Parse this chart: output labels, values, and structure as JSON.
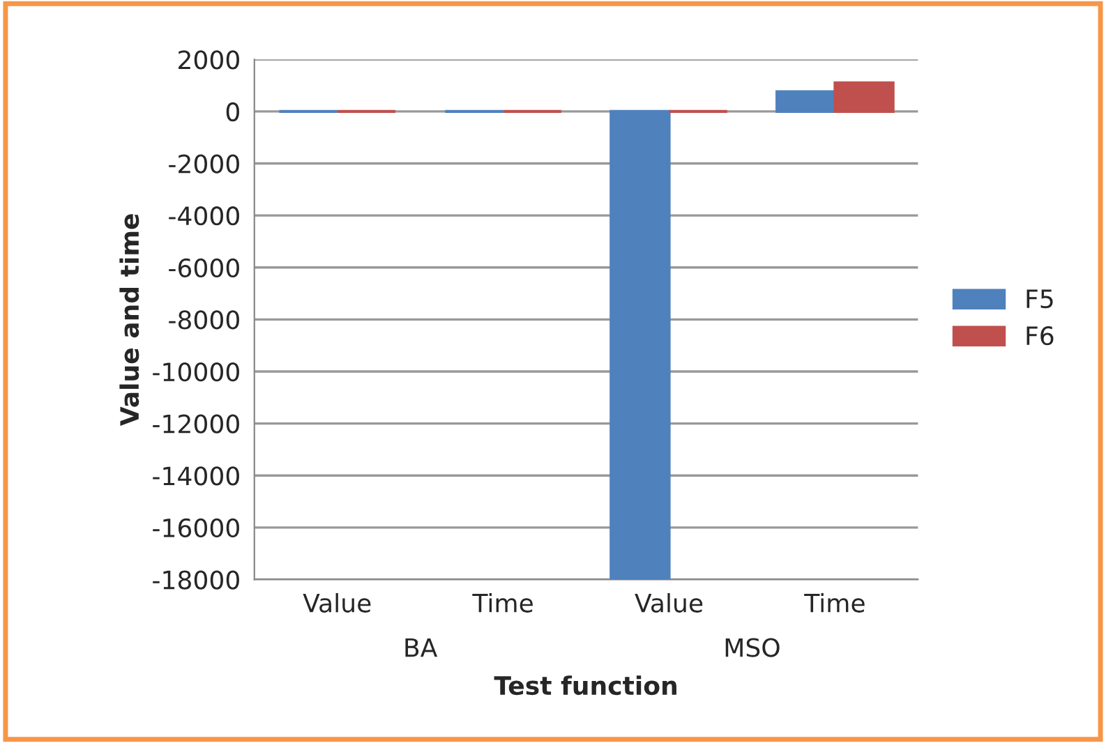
{
  "chart_data": {
    "type": "bar",
    "xlabel": "Test function",
    "ylabel": "Value and time",
    "categories": [
      "Value",
      "Time",
      "Value",
      "Time"
    ],
    "series": [
      {
        "name": "F5",
        "color": "#4f81bd",
        "values": [
          0,
          0,
          -18000,
          760
        ]
      },
      {
        "name": "F6",
        "color": "#c0504d",
        "values": [
          0,
          0,
          0,
          1100
        ]
      }
    ],
    "annotations": [
      "BA",
      "MSO"
    ],
    "ylim": [
      -18000,
      2000
    ],
    "yticks": [
      -18000,
      -16000,
      -14000,
      -12000,
      -10000,
      -8000,
      -6000,
      -4000,
      -2000,
      0,
      2000
    ],
    "grid": "y",
    "legend": "right"
  }
}
